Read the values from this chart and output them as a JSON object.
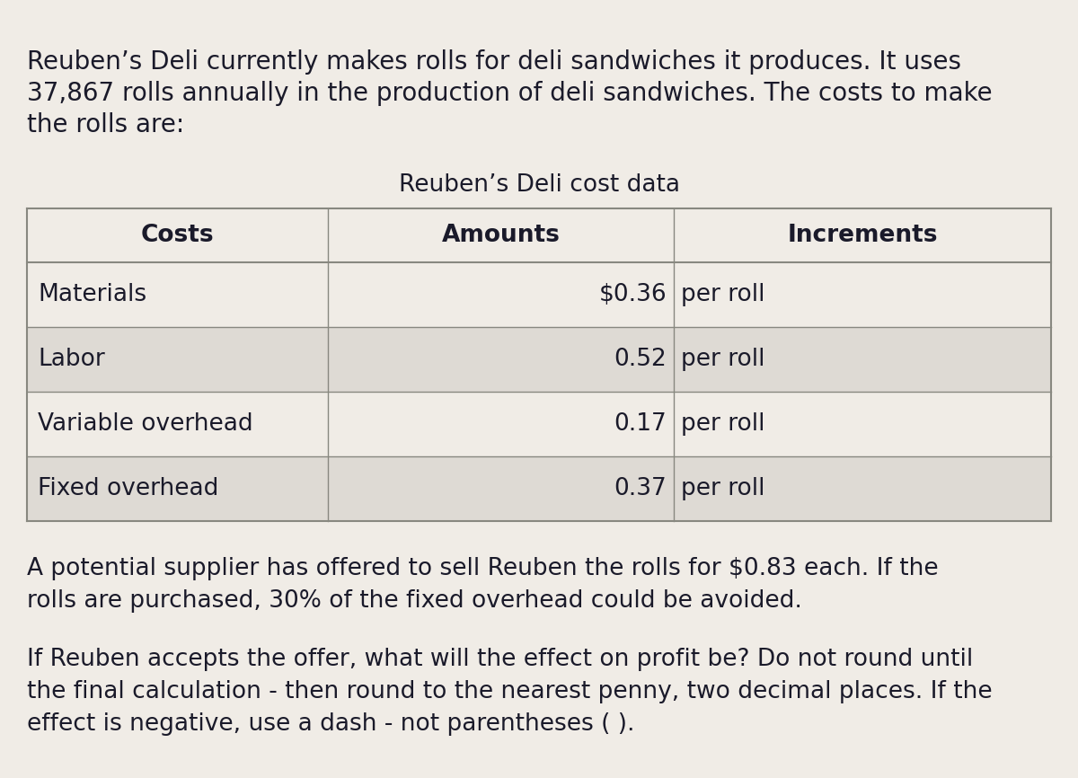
{
  "background_color": "#f0ece6",
  "intro_text_line1": "Reuben’s Deli currently makes rolls for deli sandwiches it produces. It uses",
  "intro_text_line2": "37,867 rolls annually in the production of deli sandwiches. The costs to make",
  "intro_text_line3": "the rolls are:",
  "table_title": "Reuben’s Deli cost data",
  "table_headers": [
    "Costs",
    "Amounts",
    "Increments"
  ],
  "table_rows": [
    [
      "Materials",
      "$0.36",
      "per roll"
    ],
    [
      "Labor",
      "0.52",
      "per roll"
    ],
    [
      "Variable overhead",
      "0.17",
      "per roll"
    ],
    [
      "Fixed overhead",
      "0.37",
      "per roll"
    ]
  ],
  "footer_text1_line1": "A potential supplier has offered to sell Reuben the rolls for $0.83 each. If the",
  "footer_text1_line2": "rolls are purchased, 30% of the fixed overhead could be avoided.",
  "footer_text2_line1": "If Reuben accepts the offer, what will the effect on profit be? Do not round until",
  "footer_text2_line2": "the final calculation - then round to the nearest penny, two decimal places. If the",
  "footer_text2_line3": "effect is negative, use a dash - not parentheses ( ).",
  "text_color": "#1a1a2a",
  "header_bg": "#f0ece6",
  "cell_bg_light": "#f0ece6",
  "cell_bg_dark": "#dedad4",
  "table_border_color": "#888880",
  "font_size_intro": 20,
  "font_size_table_title": 19,
  "font_size_header": 19,
  "font_size_cell": 19,
  "font_size_footer": 19
}
